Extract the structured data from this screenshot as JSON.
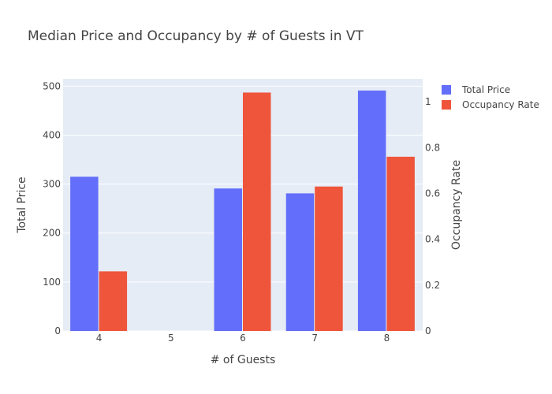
{
  "chart_data": {
    "type": "bar",
    "title": "Median Price and Occupancy by # of Guests in VT",
    "xlabel": "# of Guests",
    "ylabel": "Total Price",
    "y2label": "Occupancy Rate",
    "categories": [
      "4",
      "5",
      "6",
      "7",
      "8"
    ],
    "ylim": [
      0,
      515
    ],
    "y2lim": [
      0,
      1.1
    ],
    "yticks": [
      "0",
      "100",
      "200",
      "300",
      "400",
      "500"
    ],
    "y2ticks": [
      "0",
      "0.2",
      "0.4",
      "0.6",
      "0.8",
      "1"
    ],
    "grid": true,
    "legend_position": "top-right",
    "series": [
      {
        "name": "Total Price",
        "axis": "y",
        "color": "#636efa",
        "values": [
          315,
          null,
          291,
          281,
          491
        ]
      },
      {
        "name": "Occupancy Rate",
        "axis": "y2",
        "color": "#ef553b",
        "values": [
          0.26,
          null,
          1.04,
          0.63,
          0.76
        ]
      }
    ]
  },
  "colors": {
    "plot_background": "#e5ecf6",
    "gridline": "#ffffff"
  }
}
